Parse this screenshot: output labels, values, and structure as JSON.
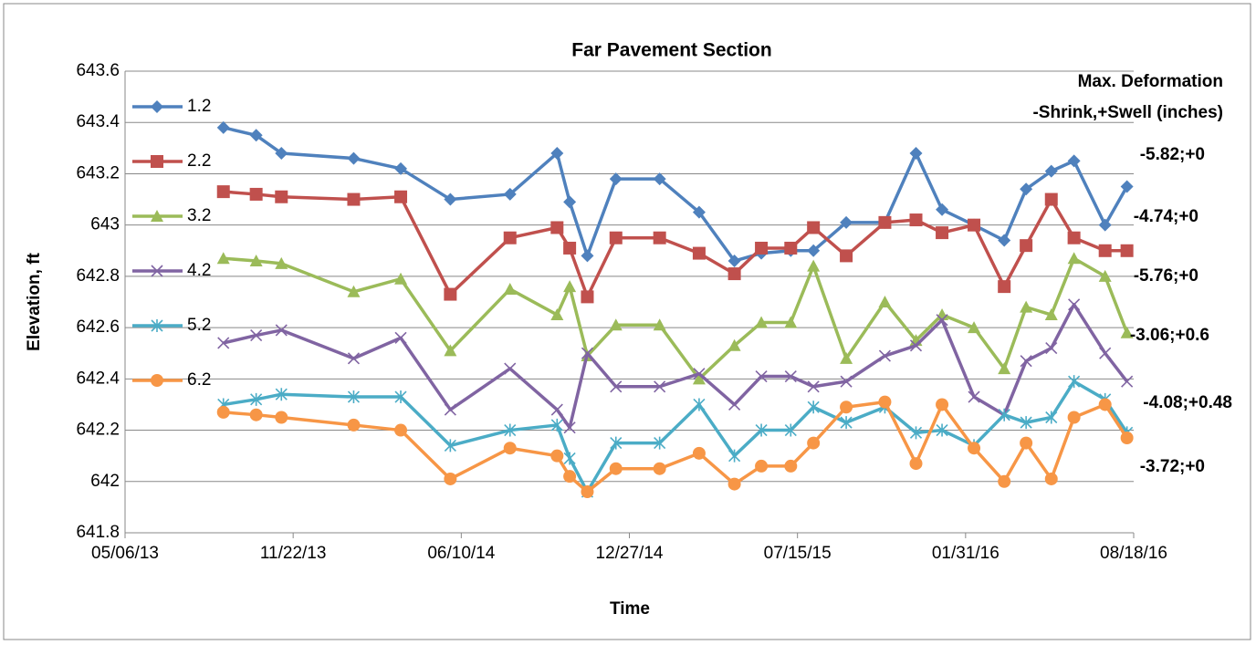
{
  "chart_data": {
    "type": "line",
    "title": "Far Pavement Section",
    "x_label": "Time",
    "y_label": "Elevation, ft",
    "annotations": [
      "Max. Deformation",
      "-Shrink,+Swell (inches)",
      "-5.82;+0",
      "-4.74;+0",
      "-5.76;+0",
      "-3.06;+0.6",
      "-4.08;+0.48",
      "-3.72;+0"
    ],
    "x": [
      "08/31/13",
      "10/09/13",
      "11/08/13",
      "02/02/14",
      "03/30/14",
      "05/28/14",
      "08/07/14",
      "10/02/14",
      "10/17/14",
      "11/07/14",
      "12/11/14",
      "02/01/15",
      "03/20/15",
      "05/01/15",
      "06/02/15",
      "07/07/15",
      "08/03/15",
      "09/11/15",
      "10/27/15",
      "12/03/15",
      "01/03/16",
      "02/10/16",
      "03/17/16",
      "04/12/16",
      "05/12/16",
      "06/08/16",
      "07/15/16",
      "08/10/16"
    ],
    "xlim": [
      "05/06/13",
      "08/18/16"
    ],
    "xticks": [
      "05/06/13",
      "11/22/13",
      "06/10/14",
      "12/27/14",
      "07/15/15",
      "01/31/16",
      "08/18/16"
    ],
    "ylim": [
      641.8,
      643.6
    ],
    "yticks": [
      641.8,
      642,
      642.2,
      642.4,
      642.6,
      642.8,
      643,
      643.2,
      643.4,
      643.6
    ],
    "grid": true,
    "legend": "upper left",
    "series": [
      {
        "name": "1.2",
        "color": "#4F81BD",
        "marker": "diamond",
        "values": [
          643.38,
          643.35,
          643.28,
          643.26,
          643.22,
          643.1,
          643.12,
          643.28,
          643.09,
          642.88,
          643.18,
          643.18,
          643.05,
          642.86,
          642.89,
          642.9,
          642.9,
          643.01,
          643.01,
          643.28,
          643.06,
          643.0,
          642.94,
          643.14,
          643.21,
          643.25,
          643.0,
          643.15
        ]
      },
      {
        "name": "2.2",
        "color": "#C0504D",
        "marker": "square",
        "values": [
          643.13,
          643.12,
          643.11,
          643.1,
          643.11,
          642.73,
          642.95,
          642.99,
          642.91,
          642.72,
          642.95,
          642.95,
          642.89,
          642.81,
          642.91,
          642.91,
          642.99,
          642.88,
          643.01,
          643.02,
          642.97,
          643.0,
          642.76,
          642.92,
          643.1,
          642.95,
          642.9,
          642.9
        ]
      },
      {
        "name": "3.2",
        "color": "#9BBB59",
        "marker": "triangle",
        "values": [
          642.87,
          642.86,
          642.85,
          642.74,
          642.79,
          642.51,
          642.75,
          642.65,
          642.76,
          642.49,
          642.61,
          642.61,
          642.4,
          642.53,
          642.62,
          642.62,
          642.84,
          642.48,
          642.7,
          642.55,
          642.65,
          642.6,
          642.44,
          642.68,
          642.65,
          642.87,
          642.8,
          642.58
        ]
      },
      {
        "name": "4.2",
        "color": "#8064A2",
        "marker": "x",
        "values": [
          642.54,
          642.57,
          642.59,
          642.48,
          642.56,
          642.28,
          642.44,
          642.28,
          642.21,
          642.5,
          642.37,
          642.37,
          642.42,
          642.3,
          642.41,
          642.41,
          642.37,
          642.39,
          642.49,
          642.53,
          642.63,
          642.33,
          642.26,
          642.47,
          642.52,
          642.69,
          642.5,
          642.39
        ]
      },
      {
        "name": "5.2",
        "color": "#4BACC6",
        "marker": "star",
        "values": [
          642.3,
          642.32,
          642.34,
          642.33,
          642.33,
          642.14,
          642.2,
          642.22,
          642.09,
          641.96,
          642.15,
          642.15,
          642.3,
          642.1,
          642.2,
          642.2,
          642.29,
          642.23,
          642.29,
          642.19,
          642.2,
          642.14,
          642.26,
          642.23,
          642.25,
          642.39,
          642.32,
          642.19
        ]
      },
      {
        "name": "6.2",
        "color": "#F79646",
        "marker": "circle",
        "values": [
          642.27,
          642.26,
          642.25,
          642.22,
          642.2,
          642.01,
          642.13,
          642.1,
          642.02,
          641.96,
          642.05,
          642.05,
          642.11,
          641.99,
          642.06,
          642.06,
          642.15,
          642.29,
          642.31,
          642.07,
          642.3,
          642.13,
          642.0,
          642.15,
          642.01,
          642.25,
          642.3,
          642.17
        ]
      }
    ]
  }
}
